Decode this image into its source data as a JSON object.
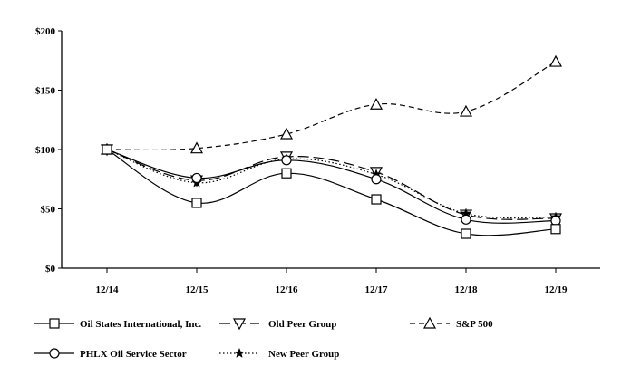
{
  "chart_data": {
    "type": "line",
    "title": "",
    "xlabel": "",
    "ylabel": "",
    "categories": [
      "12/14",
      "12/15",
      "12/16",
      "12/17",
      "12/18",
      "12/19"
    ],
    "ylim": [
      0,
      200
    ],
    "yticks": [
      {
        "value": 0,
        "label": "$0"
      },
      {
        "value": 50,
        "label": "$50"
      },
      {
        "value": 100,
        "label": "$100"
      },
      {
        "value": 150,
        "label": "$150"
      },
      {
        "value": 200,
        "label": "$200"
      }
    ],
    "grid": false,
    "legend_position": "bottom",
    "series": [
      {
        "name": "Oil States International, Inc.",
        "values": [
          100,
          55,
          80,
          58,
          29,
          33
        ],
        "marker": "square",
        "dash": "solid"
      },
      {
        "name": "Old Peer Group",
        "values": [
          100,
          74,
          94,
          81,
          45,
          42
        ],
        "marker": "triangle-down",
        "dash": "longdash"
      },
      {
        "name": "S&P 500",
        "values": [
          100,
          101,
          113,
          138,
          132,
          174
        ],
        "marker": "triangle-up",
        "dash": "dash"
      },
      {
        "name": "PHLX Oil Service Sector",
        "values": [
          100,
          76,
          91,
          75,
          41,
          40
        ],
        "marker": "circle",
        "dash": "solid"
      },
      {
        "name": "New Peer Group",
        "values": [
          100,
          72,
          92,
          79,
          46,
          43
        ],
        "marker": "star",
        "dash": "dotted"
      }
    ]
  }
}
